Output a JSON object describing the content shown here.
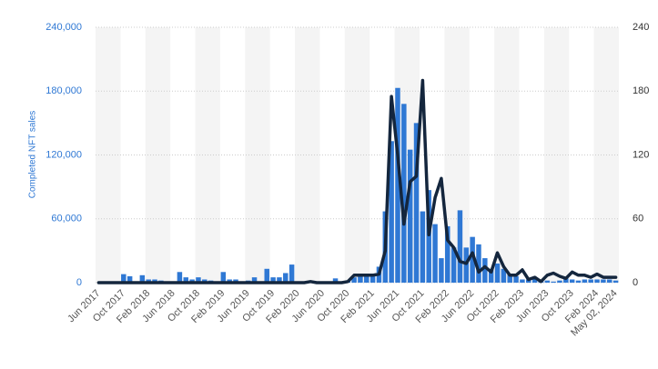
{
  "chart_data": {
    "type": "combo",
    "y_label": "Completed NFT sales",
    "categories": [
      "Jun 2017",
      null,
      null,
      null,
      "Oct 2017",
      null,
      null,
      null,
      "Feb 2018",
      null,
      null,
      null,
      "Jun 2018",
      null,
      null,
      null,
      "Oct 2018",
      null,
      null,
      null,
      "Feb 2019",
      null,
      null,
      null,
      "Jun 2019",
      null,
      null,
      null,
      "Oct 2019",
      null,
      null,
      null,
      "Feb 2020",
      null,
      null,
      null,
      "Jun 2020",
      null,
      null,
      null,
      "Oct 2020",
      null,
      null,
      null,
      "Feb 2021",
      null,
      null,
      null,
      "Jun 2021",
      null,
      null,
      null,
      "Oct 2021",
      null,
      null,
      null,
      "Feb 2022",
      null,
      null,
      null,
      "Jun 2022",
      null,
      null,
      null,
      "Oct 2022",
      null,
      null,
      null,
      "Feb 2023",
      null,
      null,
      null,
      "Jun 2023",
      null,
      null,
      null,
      "Oct 2023",
      null,
      null,
      null,
      "Feb 2024",
      null,
      null,
      "May 02, 2024"
    ],
    "series": [
      {
        "type": "bar",
        "color": "#2f78d4",
        "values": [
          0,
          0,
          0,
          0,
          8000,
          6000,
          0,
          7000,
          3000,
          3000,
          2000,
          0,
          0,
          10000,
          5000,
          3000,
          5000,
          3000,
          2000,
          0,
          10000,
          3000,
          3000,
          0,
          2000,
          5000,
          0,
          13000,
          5000,
          5000,
          9000,
          17000,
          0,
          0,
          1000,
          0,
          0,
          0,
          4000,
          0,
          2000,
          5000,
          7000,
          6000,
          7000,
          15000,
          67000,
          133000,
          183000,
          168000,
          125000,
          150000,
          67000,
          87000,
          55000,
          23000,
          53000,
          33000,
          68000,
          33000,
          43000,
          36000,
          23000,
          13000,
          18000,
          13000,
          8000,
          6000,
          3000,
          3000,
          4000,
          3000,
          2000,
          1000,
          2000,
          4000,
          3000,
          2000,
          3000,
          3000,
          3000,
          3000,
          3000,
          2000
        ]
      },
      {
        "type": "line",
        "axis": "y2",
        "color": "#14263d",
        "values": [
          0,
          0,
          0,
          0,
          0,
          0,
          0,
          0,
          0,
          0,
          0,
          0,
          0,
          0,
          0,
          0,
          0,
          0,
          0,
          0,
          0,
          0,
          0,
          0,
          0,
          0,
          0,
          0,
          0,
          0,
          0,
          0,
          0,
          0,
          1,
          0,
          0,
          0,
          0,
          0,
          1,
          7,
          7,
          7,
          7,
          8,
          30,
          175,
          120,
          55,
          95,
          100,
          190,
          45,
          80,
          98,
          40,
          33,
          20,
          18,
          28,
          10,
          15,
          10,
          28,
          15,
          7,
          7,
          12,
          3,
          5,
          1,
          7,
          9,
          6,
          4,
          10,
          7,
          7,
          5,
          8,
          5,
          5,
          5
        ]
      }
    ],
    "ylim": [
      0,
      240000
    ],
    "yticks": [
      0,
      {
        "value": 60000,
        "label": "60,000"
      },
      {
        "value": 120000,
        "label": "120,000"
      },
      {
        "value": 180000,
        "label": "180,000"
      },
      {
        "value": 240000,
        "label": "240,000"
      }
    ],
    "y2lim": [
      0,
      240
    ],
    "y2ticks": [
      0,
      60,
      120,
      180,
      240
    ],
    "grid": true
  }
}
